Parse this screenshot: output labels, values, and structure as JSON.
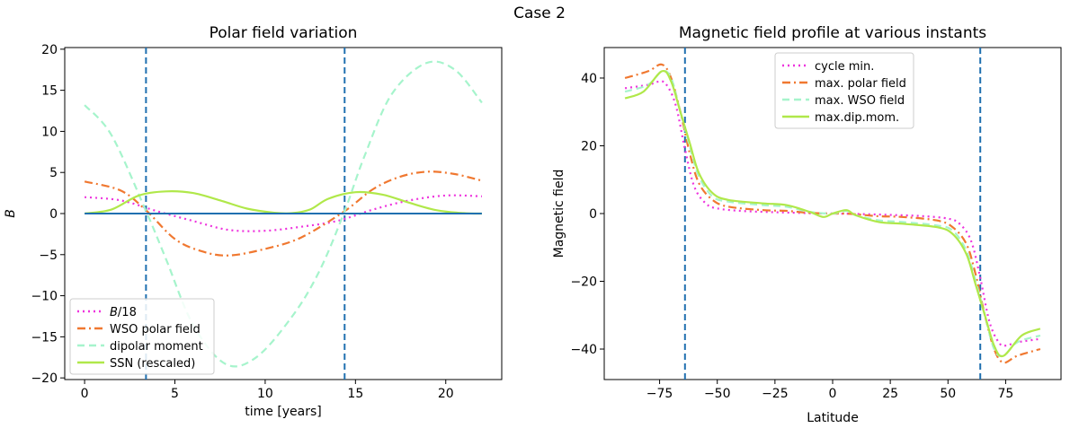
{
  "figure_title": "Case 2",
  "chart_data": [
    {
      "type": "line",
      "title": "Polar field variation",
      "xlabel": "time [years]",
      "ylabel": "B",
      "xlim": [
        -1.1,
        23.1
      ],
      "ylim": [
        -20.2,
        20.2
      ],
      "xticks": [
        0,
        5,
        10,
        15,
        20
      ],
      "yticks": [
        -20,
        -15,
        -10,
        -5,
        0,
        5,
        10,
        15,
        20
      ],
      "vlines": [
        3.4,
        14.4
      ],
      "hline": 0,
      "legend_position": "lower-left",
      "colors": {
        "b18": "#ee33dd",
        "wso": "#f07830",
        "dipolar": "#a6f4cc",
        "ssn": "#b0e84a",
        "ref": "#2070b0"
      },
      "series": [
        {
          "key": "b18",
          "name": "B/18",
          "name_italic": "B",
          "name_rest": "/18",
          "style": "dotted",
          "x": [
            0,
            2,
            4,
            6,
            8,
            10,
            12,
            14,
            16,
            18,
            20,
            22
          ],
          "y": [
            2.0,
            1.6,
            0.3,
            -0.9,
            -2.0,
            -2.1,
            -1.6,
            -0.9,
            0.5,
            1.6,
            2.2,
            2.1
          ]
        },
        {
          "key": "wso",
          "name": "WSO polar field",
          "style": "dashdot",
          "x": [
            0,
            2,
            3.4,
            5,
            6.5,
            8,
            10,
            12,
            14.4,
            16,
            17.5,
            19,
            20.5,
            22
          ],
          "y": [
            3.9,
            2.8,
            0.4,
            -3.1,
            -4.6,
            -5.1,
            -4.3,
            -2.9,
            0.3,
            3.0,
            4.5,
            5.1,
            4.8,
            4.0
          ]
        },
        {
          "key": "dipolar",
          "name": "dipolar moment",
          "style": "dashed",
          "x": [
            0,
            1.5,
            3.4,
            4.5,
            6,
            7.8,
            9.5,
            11.5,
            13,
            14.4,
            15.5,
            17,
            18.9,
            20.5,
            22
          ],
          "y": [
            13.2,
            9.5,
            0.3,
            -5.5,
            -13.5,
            -18.3,
            -17.5,
            -12.5,
            -7.0,
            0.3,
            7.0,
            14.5,
            18.3,
            17.5,
            13.5
          ]
        },
        {
          "key": "ssn",
          "name": "SSN (rescaled)",
          "style": "solid",
          "x": [
            0,
            1.5,
            3,
            4.5,
            6,
            7.5,
            9,
            10.5,
            11.5,
            12.5,
            13.5,
            15,
            16.5,
            18,
            19.5,
            21,
            22
          ],
          "y": [
            0,
            0.5,
            2.2,
            2.7,
            2.5,
            1.6,
            0.6,
            0.1,
            0.05,
            0.5,
            1.8,
            2.6,
            2.3,
            1.3,
            0.4,
            0.05,
            0
          ]
        },
        {
          "key": "ref",
          "name": "zero line",
          "style": "solid",
          "in_legend": false,
          "x": [
            0,
            22
          ],
          "y": [
            0,
            0
          ]
        }
      ]
    },
    {
      "type": "line",
      "title": "Magnetic field profile at various instants",
      "xlabel": "Latitude",
      "ylabel": "Magnetic field",
      "xlim": [
        -99,
        99
      ],
      "ylim": [
        -49,
        49
      ],
      "xticks": [
        -75,
        -50,
        -25,
        0,
        25,
        50,
        75
      ],
      "yticks": [
        -40,
        -20,
        0,
        20,
        40
      ],
      "vlines": [
        -64,
        64
      ],
      "legend_position": "top-center",
      "colors": {
        "cycle": "#ee33dd",
        "polar": "#f07830",
        "wso": "#a6f4cc",
        "dip": "#b0e84a",
        "ref": "#2070b0"
      },
      "series": [
        {
          "key": "cycle",
          "name": "cycle min.",
          "style": "dotted",
          "x": [
            -90,
            -80,
            -75,
            -72,
            -68,
            -64,
            -60,
            -55,
            -50,
            -40,
            -30,
            -20,
            -10,
            0,
            10,
            20,
            30,
            40,
            50,
            55,
            60,
            64,
            68,
            72,
            75,
            80,
            90
          ],
          "y": [
            37,
            38,
            39,
            38,
            32,
            19,
            8,
            3,
            1.5,
            0.8,
            0.5,
            0.3,
            0.1,
            0,
            -0.1,
            -0.3,
            -0.5,
            -0.8,
            -1.5,
            -3,
            -8,
            -19,
            -32,
            -38,
            -39,
            -38,
            -37
          ]
        },
        {
          "key": "polar",
          "name": "max. polar field",
          "style": "dashdot",
          "x": [
            -90,
            -80,
            -74,
            -70,
            -66,
            -62,
            -58,
            -52,
            -45,
            -30,
            -20,
            -10,
            0,
            5,
            10,
            20,
            30,
            45,
            52,
            58,
            62,
            66,
            70,
            74,
            80,
            90
          ],
          "y": [
            40,
            42,
            44,
            40,
            30,
            18,
            9,
            4,
            2,
            1,
            0.8,
            0.2,
            0,
            0,
            -0.2,
            -0.8,
            -1,
            -2,
            -4,
            -9,
            -18,
            -30,
            -40,
            -44,
            -42,
            -40
          ]
        },
        {
          "key": "wso",
          "name": "max. WSO field",
          "style": "dashed",
          "x": [
            -90,
            -80,
            -74,
            -70,
            -66,
            -62,
            -58,
            -52,
            -45,
            -30,
            -20,
            -10,
            0,
            6,
            10,
            20,
            30,
            45,
            52,
            58,
            62,
            66,
            70,
            74,
            80,
            90
          ],
          "y": [
            36,
            38,
            42,
            40,
            30,
            20,
            11,
            5,
            3.5,
            2.5,
            2,
            0.5,
            0,
            0.8,
            -0.5,
            -2,
            -2.5,
            -3.5,
            -5,
            -11,
            -20,
            -30,
            -40,
            -42,
            -38,
            -36
          ]
        },
        {
          "key": "dip",
          "name": "max.dip.mom.",
          "style": "solid",
          "x": [
            -90,
            -82,
            -74,
            -70,
            -66,
            -62,
            -58,
            -52,
            -45,
            -30,
            -20,
            -10,
            -4,
            0,
            6,
            10,
            20,
            30,
            45,
            52,
            58,
            62,
            66,
            70,
            74,
            82,
            90
          ],
          "y": [
            34,
            36,
            42,
            39,
            30,
            21,
            12,
            6,
            4,
            3,
            2.5,
            0.5,
            -1,
            0,
            1,
            -0.5,
            -2.5,
            -3,
            -4,
            -6,
            -12,
            -21,
            -30,
            -39,
            -42,
            -36,
            -34
          ]
        }
      ]
    }
  ]
}
